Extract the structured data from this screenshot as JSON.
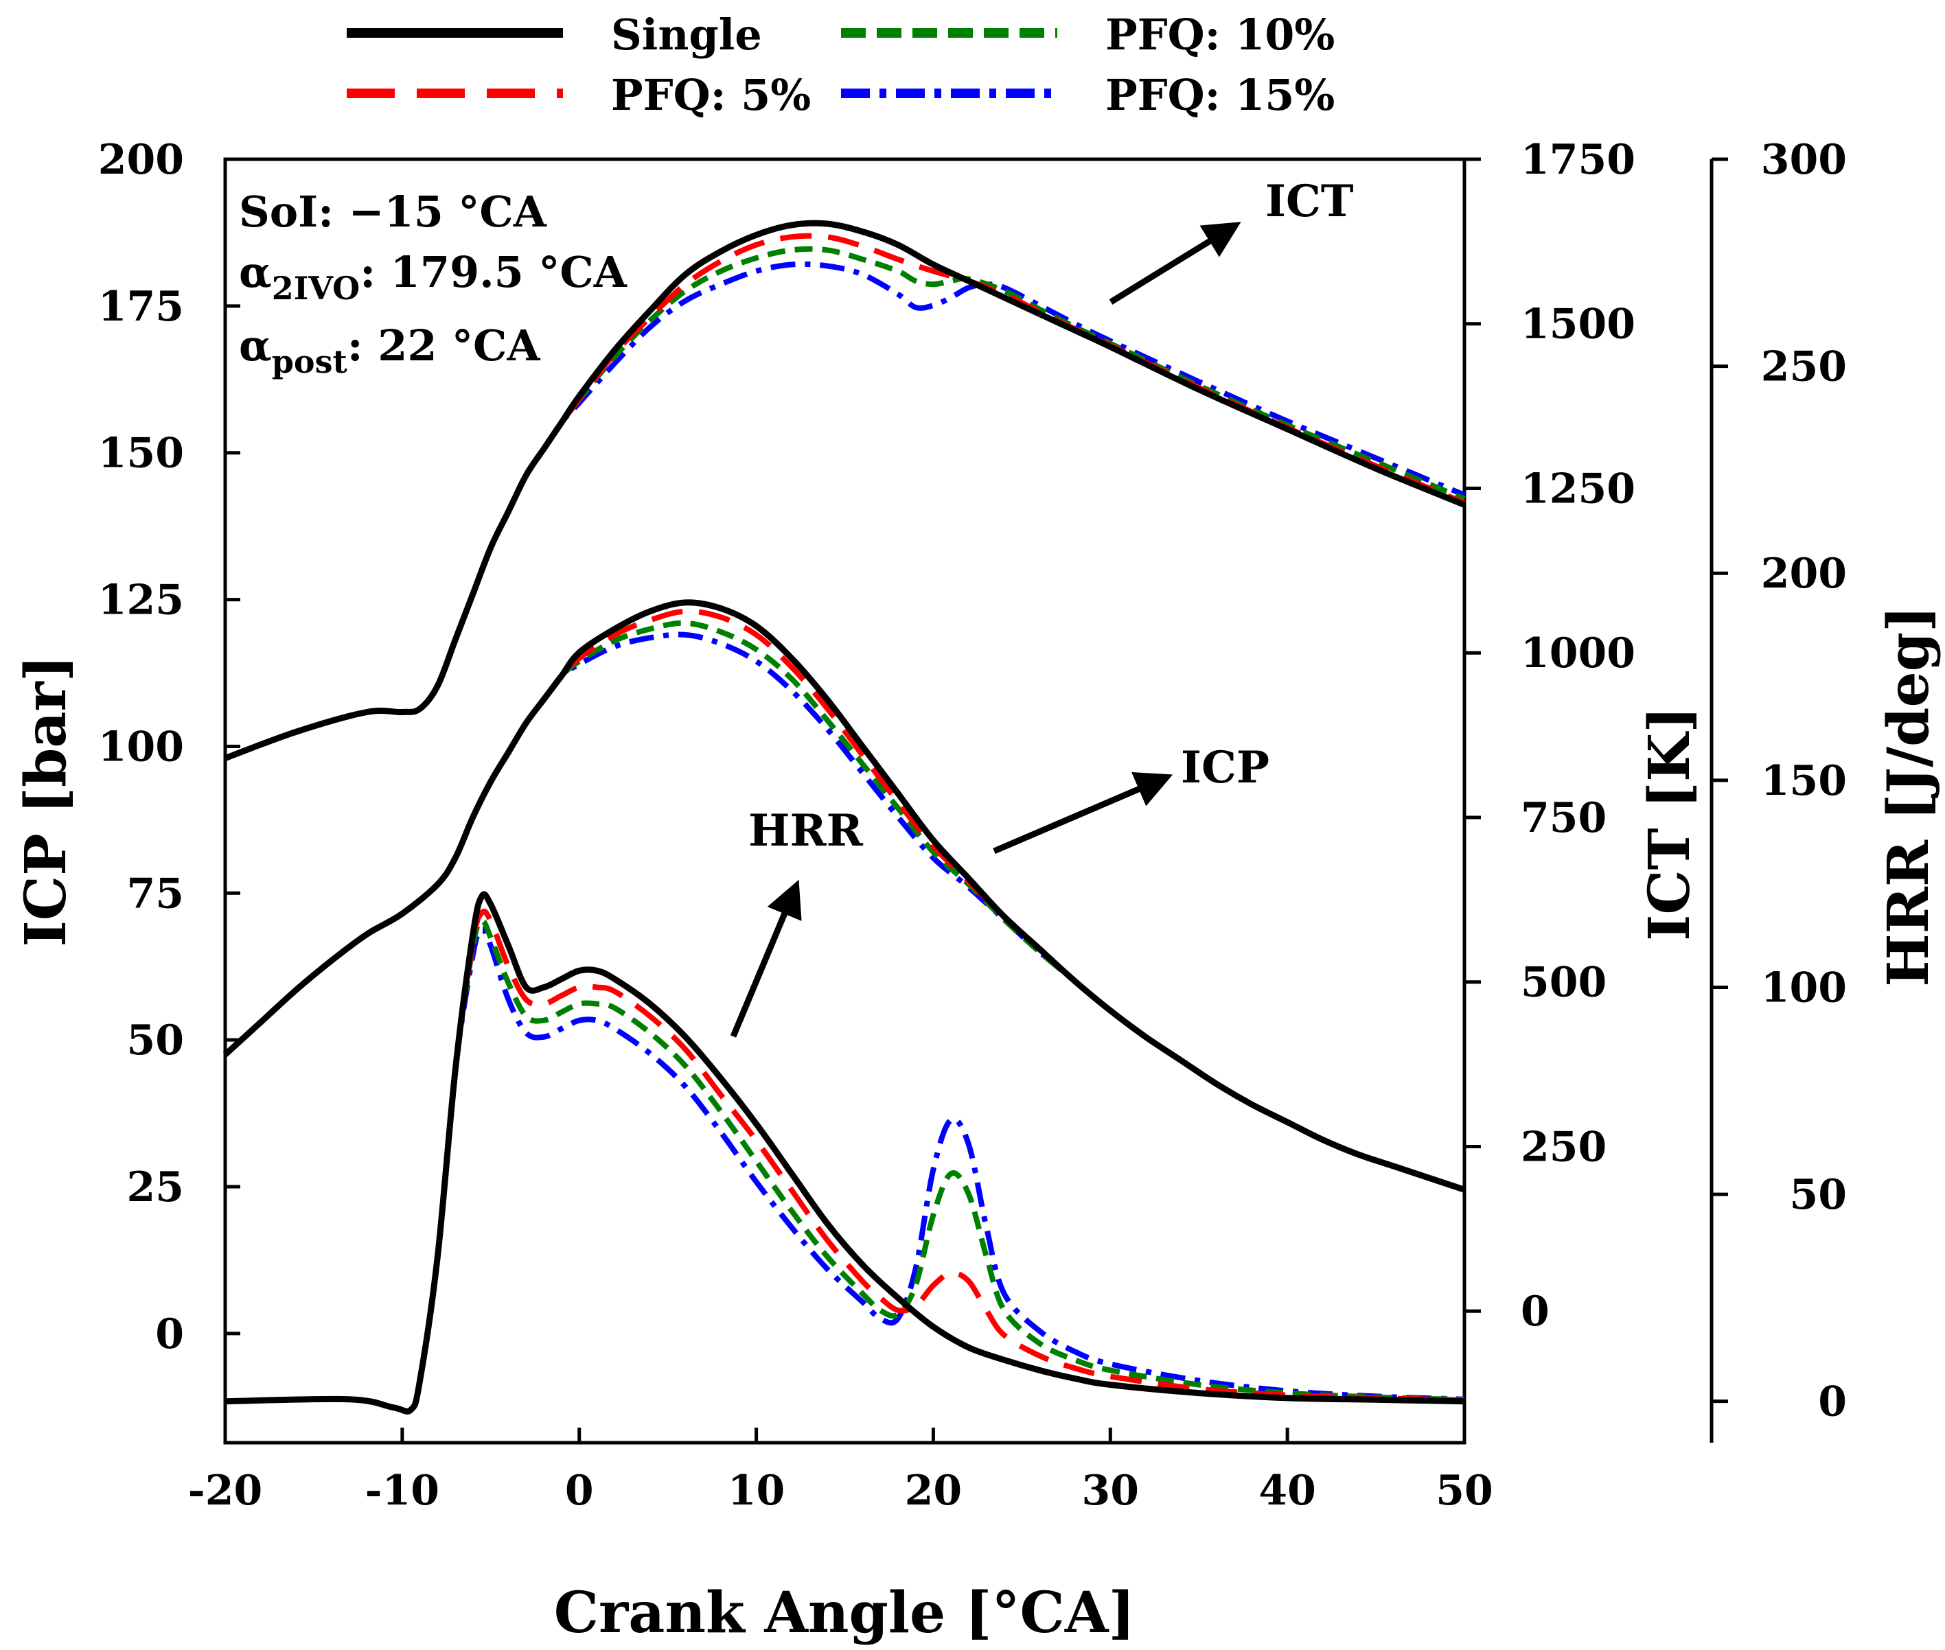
{
  "chart_data": {
    "type": "line",
    "x_axis": {
      "label": "Crank Angle [°CA]",
      "range": [
        -20,
        50
      ],
      "ticks": [
        -20,
        -10,
        0,
        10,
        20,
        30,
        40,
        50
      ]
    },
    "y_axes": {
      "icp": {
        "label": "ICP [bar]",
        "range": [
          -18.6,
          200
        ],
        "ticks": [
          0,
          25,
          50,
          75,
          100,
          125,
          150,
          175,
          200
        ]
      },
      "ict": {
        "label": "ICT [K]",
        "range": [
          -200,
          1750
        ],
        "ticks": [
          0,
          250,
          500,
          750,
          1000,
          1250,
          1500,
          1750
        ]
      },
      "hrr": {
        "label": "HRR [J/deg]",
        "range": [
          -10,
          300
        ],
        "ticks": [
          0,
          50,
          100,
          150,
          200,
          250,
          300
        ]
      }
    },
    "legend": {
      "placement": "top",
      "entries": [
        {
          "key": "single",
          "label": "Single"
        },
        {
          "key": "pfq5",
          "label": "PFQ: 5%"
        },
        {
          "key": "pfq10",
          "label": "PFQ: 10%"
        },
        {
          "key": "pfq15",
          "label": "PFQ: 15%"
        }
      ]
    },
    "annotations": {
      "ict": "ICT",
      "icp": "ICP",
      "hrr": "HRR"
    },
    "params": {
      "soi": "SoI: −15 °CA",
      "a2ivo_alpha": "α",
      "a2ivo_sub": "2IVO",
      "a2ivo_rest": ": 179.5 °CA",
      "apost_alpha": "α",
      "apost_sub": "post",
      "apost_rest": ": 22 °CA"
    },
    "series": [
      {
        "key": "single",
        "name": "Single",
        "color": "#000000",
        "dash": "solid"
      },
      {
        "key": "pfq5",
        "name": "PFQ: 5%",
        "color": "#ff0000",
        "dash": "long-dash"
      },
      {
        "key": "pfq10",
        "name": "PFQ: 10%",
        "color": "#008000",
        "dash": "short-dash"
      },
      {
        "key": "pfq15",
        "name": "PFQ: 15%",
        "color": "#0000ff",
        "dash": "dash-dot"
      }
    ],
    "ict": {
      "common": [
        [
          -20,
          840
        ],
        [
          -16,
          880
        ],
        [
          -12,
          910
        ],
        [
          -10,
          910
        ],
        [
          -9,
          915
        ],
        [
          -8,
          950
        ],
        [
          -7,
          1020
        ],
        [
          -6,
          1090
        ],
        [
          -5,
          1160
        ],
        [
          -4,
          1215
        ],
        [
          -3,
          1270
        ],
        [
          -2,
          1310
        ],
        [
          -1,
          1350
        ]
      ],
      "single": [
        [
          0,
          1390
        ],
        [
          2,
          1460
        ],
        [
          4,
          1520
        ],
        [
          6,
          1575
        ],
        [
          8,
          1610
        ],
        [
          10,
          1635
        ],
        [
          12,
          1650
        ],
        [
          14,
          1652
        ],
        [
          16,
          1640
        ],
        [
          18,
          1620
        ],
        [
          20,
          1590
        ],
        [
          22,
          1565
        ],
        [
          24,
          1540
        ],
        [
          26,
          1515
        ],
        [
          28,
          1490
        ],
        [
          30,
          1465
        ],
        [
          35,
          1400
        ],
        [
          40,
          1340
        ],
        [
          45,
          1280
        ],
        [
          50,
          1225
        ]
      ],
      "pfq5": [
        [
          0,
          1385
        ],
        [
          2,
          1455
        ],
        [
          4,
          1510
        ],
        [
          6,
          1560
        ],
        [
          8,
          1595
        ],
        [
          10,
          1620
        ],
        [
          12,
          1632
        ],
        [
          14,
          1632
        ],
        [
          16,
          1618
        ],
        [
          18,
          1598
        ],
        [
          20,
          1580
        ],
        [
          22,
          1565
        ],
        [
          24,
          1545
        ],
        [
          26,
          1518
        ],
        [
          28,
          1492
        ],
        [
          30,
          1467
        ],
        [
          35,
          1403
        ],
        [
          40,
          1342
        ],
        [
          45,
          1284
        ],
        [
          50,
          1228
        ]
      ],
      "pfq10": [
        [
          0,
          1385
        ],
        [
          2,
          1450
        ],
        [
          4,
          1505
        ],
        [
          6,
          1550
        ],
        [
          8,
          1580
        ],
        [
          10,
          1600
        ],
        [
          12,
          1612
        ],
        [
          14,
          1612
        ],
        [
          16,
          1598
        ],
        [
          18,
          1580
        ],
        [
          19,
          1565
        ],
        [
          20,
          1560
        ],
        [
          21,
          1565
        ],
        [
          22,
          1568
        ],
        [
          24,
          1550
        ],
        [
          26,
          1522
        ],
        [
          28,
          1495
        ],
        [
          30,
          1470
        ],
        [
          35,
          1406
        ],
        [
          40,
          1346
        ],
        [
          45,
          1290
        ],
        [
          50,
          1234
        ]
      ],
      "pfq15": [
        [
          0,
          1380
        ],
        [
          2,
          1440
        ],
        [
          4,
          1495
        ],
        [
          6,
          1535
        ],
        [
          8,
          1560
        ],
        [
          10,
          1580
        ],
        [
          12,
          1590
        ],
        [
          14,
          1588
        ],
        [
          16,
          1575
        ],
        [
          18,
          1545
        ],
        [
          19,
          1525
        ],
        [
          20,
          1528
        ],
        [
          21,
          1540
        ],
        [
          22,
          1555
        ],
        [
          23,
          1560
        ],
        [
          24,
          1555
        ],
        [
          26,
          1528
        ],
        [
          28,
          1500
        ],
        [
          30,
          1474
        ],
        [
          35,
          1412
        ],
        [
          40,
          1352
        ],
        [
          45,
          1296
        ],
        [
          50,
          1240
        ]
      ]
    },
    "icp": {
      "common": [
        [
          -20,
          47.5
        ],
        [
          -18,
          53
        ],
        [
          -16,
          58.5
        ],
        [
          -14,
          63.5
        ],
        [
          -12,
          68
        ],
        [
          -10,
          71.5
        ],
        [
          -8,
          76.5
        ],
        [
          -7,
          81
        ],
        [
          -6,
          88
        ],
        [
          -5,
          94
        ],
        [
          -4,
          99
        ],
        [
          -3,
          104
        ],
        [
          -2,
          108
        ],
        [
          -1,
          112
        ]
      ],
      "single": [
        [
          0,
          116
        ],
        [
          2,
          120
        ],
        [
          4,
          123
        ],
        [
          6,
          124.5
        ],
        [
          8,
          123.5
        ],
        [
          10,
          120.5
        ],
        [
          12,
          115
        ],
        [
          14,
          108
        ],
        [
          16,
          100
        ],
        [
          18,
          92
        ],
        [
          20,
          84
        ],
        [
          22,
          77.5
        ],
        [
          24,
          71
        ],
        [
          26,
          65.5
        ],
        [
          28,
          60
        ],
        [
          30,
          55
        ],
        [
          32,
          50.5
        ],
        [
          34,
          46.5
        ],
        [
          36,
          42.5
        ],
        [
          38,
          39
        ],
        [
          40,
          36
        ],
        [
          42,
          33
        ],
        [
          44,
          30.5
        ],
        [
          46,
          28.5
        ],
        [
          48,
          26.5
        ],
        [
          50,
          24.5
        ]
      ],
      "pfq5": [
        [
          0,
          115
        ],
        [
          2,
          119
        ],
        [
          4,
          121.5
        ],
        [
          6,
          123
        ],
        [
          8,
          122
        ],
        [
          10,
          119
        ],
        [
          12,
          113.5
        ],
        [
          14,
          106.5
        ],
        [
          16,
          98.5
        ],
        [
          18,
          90.5
        ],
        [
          20,
          83
        ],
        [
          22,
          77
        ],
        [
          24,
          71
        ],
        [
          26,
          65.5
        ],
        [
          28,
          60
        ],
        [
          30,
          55
        ],
        [
          32,
          50.5
        ],
        [
          34,
          46.5
        ],
        [
          36,
          42.5
        ],
        [
          38,
          39
        ],
        [
          40,
          36
        ],
        [
          42,
          33
        ],
        [
          44,
          30.5
        ],
        [
          46,
          28.5
        ],
        [
          48,
          26.5
        ],
        [
          50,
          24.5
        ]
      ],
      "pfq10": [
        [
          0,
          114.5
        ],
        [
          2,
          118
        ],
        [
          4,
          120
        ],
        [
          6,
          121
        ],
        [
          8,
          119.5
        ],
        [
          10,
          116.5
        ],
        [
          12,
          111.5
        ],
        [
          14,
          104.5
        ],
        [
          16,
          97
        ],
        [
          18,
          89.5
        ],
        [
          20,
          82
        ],
        [
          22,
          76.5
        ],
        [
          24,
          70.5
        ],
        [
          26,
          65
        ],
        [
          28,
          60
        ],
        [
          30,
          55
        ],
        [
          32,
          50.5
        ],
        [
          34,
          46.5
        ],
        [
          36,
          42.5
        ],
        [
          38,
          39
        ],
        [
          40,
          36
        ],
        [
          42,
          33
        ],
        [
          44,
          30.5
        ],
        [
          46,
          28.5
        ],
        [
          48,
          26.5
        ],
        [
          50,
          24.5
        ]
      ],
      "pfq15": [
        [
          0,
          114
        ],
        [
          2,
          117
        ],
        [
          4,
          118.5
        ],
        [
          6,
          119
        ],
        [
          8,
          117.5
        ],
        [
          10,
          114.5
        ],
        [
          12,
          109.5
        ],
        [
          14,
          103
        ],
        [
          16,
          95.5
        ],
        [
          18,
          88
        ],
        [
          20,
          81
        ],
        [
          22,
          76
        ],
        [
          24,
          70.5
        ],
        [
          26,
          65
        ],
        [
          28,
          60
        ],
        [
          30,
          55
        ],
        [
          32,
          50.5
        ],
        [
          34,
          46.5
        ],
        [
          36,
          42.5
        ],
        [
          38,
          39
        ],
        [
          40,
          36
        ],
        [
          42,
          33
        ],
        [
          44,
          30.5
        ],
        [
          46,
          28.5
        ],
        [
          48,
          26.5
        ],
        [
          50,
          24.5
        ]
      ]
    },
    "hrr": {
      "common": [
        [
          -20,
          0
        ],
        [
          -13,
          0.5
        ],
        [
          -10.5,
          -1.5
        ],
        [
          -9.5,
          -2
        ],
        [
          -9,
          5
        ],
        [
          -8,
          35
        ],
        [
          -7,
          80
        ]
      ],
      "single": [
        [
          -6,
          113
        ],
        [
          -5.5,
          122
        ],
        [
          -5,
          120
        ],
        [
          -4,
          110
        ],
        [
          -3,
          100
        ],
        [
          -2,
          100
        ],
        [
          -1,
          102
        ],
        [
          0,
          104
        ],
        [
          1,
          104
        ],
        [
          2,
          102
        ],
        [
          4,
          96
        ],
        [
          6,
          88
        ],
        [
          8,
          78
        ],
        [
          10,
          67
        ],
        [
          12,
          55
        ],
        [
          14,
          43
        ],
        [
          16,
          33
        ],
        [
          18,
          25
        ],
        [
          20,
          18
        ],
        [
          22,
          13
        ],
        [
          24,
          10
        ],
        [
          26,
          7.5
        ],
        [
          28,
          5.5
        ],
        [
          30,
          4
        ],
        [
          35,
          2
        ],
        [
          40,
          0.8
        ],
        [
          45,
          0.4
        ],
        [
          50,
          0
        ]
      ],
      "pfq5": [
        [
          -6,
          111
        ],
        [
          -5.5,
          118
        ],
        [
          -5,
          116
        ],
        [
          -4,
          105
        ],
        [
          -3,
          97
        ],
        [
          -2,
          96
        ],
        [
          -1,
          98
        ],
        [
          0,
          100
        ],
        [
          1,
          100
        ],
        [
          2,
          99
        ],
        [
          4,
          93
        ],
        [
          6,
          85
        ],
        [
          8,
          74
        ],
        [
          10,
          63
        ],
        [
          12,
          51
        ],
        [
          14,
          39
        ],
        [
          16,
          29
        ],
        [
          17,
          25
        ],
        [
          18,
          22
        ],
        [
          19,
          23
        ],
        [
          20,
          28
        ],
        [
          21,
          31
        ],
        [
          22,
          29
        ],
        [
          23,
          22
        ],
        [
          24,
          16
        ],
        [
          26,
          11
        ],
        [
          28,
          8
        ],
        [
          30,
          6
        ],
        [
          35,
          3
        ],
        [
          40,
          1.5
        ],
        [
          45,
          0.8
        ],
        [
          50,
          0.3
        ]
      ],
      "pfq10": [
        [
          -6,
          110
        ],
        [
          -5.5,
          116
        ],
        [
          -5,
          112
        ],
        [
          -4,
          101
        ],
        [
          -3,
          93
        ],
        [
          -2,
          92
        ],
        [
          -1,
          94
        ],
        [
          0,
          96
        ],
        [
          1,
          96
        ],
        [
          2,
          95
        ],
        [
          4,
          89
        ],
        [
          6,
          81
        ],
        [
          8,
          70
        ],
        [
          10,
          58
        ],
        [
          12,
          46
        ],
        [
          14,
          35
        ],
        [
          16,
          26
        ],
        [
          17,
          22
        ],
        [
          18,
          21
        ],
        [
          19,
          28
        ],
        [
          20,
          45
        ],
        [
          21,
          55
        ],
        [
          22,
          50
        ],
        [
          23,
          35
        ],
        [
          24,
          22
        ],
        [
          26,
          14
        ],
        [
          28,
          10
        ],
        [
          30,
          7.5
        ],
        [
          35,
          4
        ],
        [
          40,
          2
        ],
        [
          45,
          1
        ],
        [
          50,
          0.4
        ]
      ],
      "pfq15": [
        [
          -6,
          108
        ],
        [
          -5.5,
          114
        ],
        [
          -5,
          110
        ],
        [
          -4,
          97
        ],
        [
          -3,
          89
        ],
        [
          -2,
          88
        ],
        [
          -1,
          90
        ],
        [
          0,
          92
        ],
        [
          1,
          92
        ],
        [
          2,
          90
        ],
        [
          4,
          84
        ],
        [
          6,
          76
        ],
        [
          8,
          65
        ],
        [
          10,
          53
        ],
        [
          12,
          42
        ],
        [
          14,
          32
        ],
        [
          16,
          24
        ],
        [
          17,
          20
        ],
        [
          18,
          20
        ],
        [
          19,
          32
        ],
        [
          20,
          56
        ],
        [
          21,
          68
        ],
        [
          22,
          62
        ],
        [
          23,
          42
        ],
        [
          24,
          26
        ],
        [
          26,
          17
        ],
        [
          28,
          12
        ],
        [
          30,
          9
        ],
        [
          35,
          5
        ],
        [
          40,
          2.5
        ],
        [
          45,
          1.2
        ],
        [
          50,
          0.5
        ]
      ]
    }
  }
}
